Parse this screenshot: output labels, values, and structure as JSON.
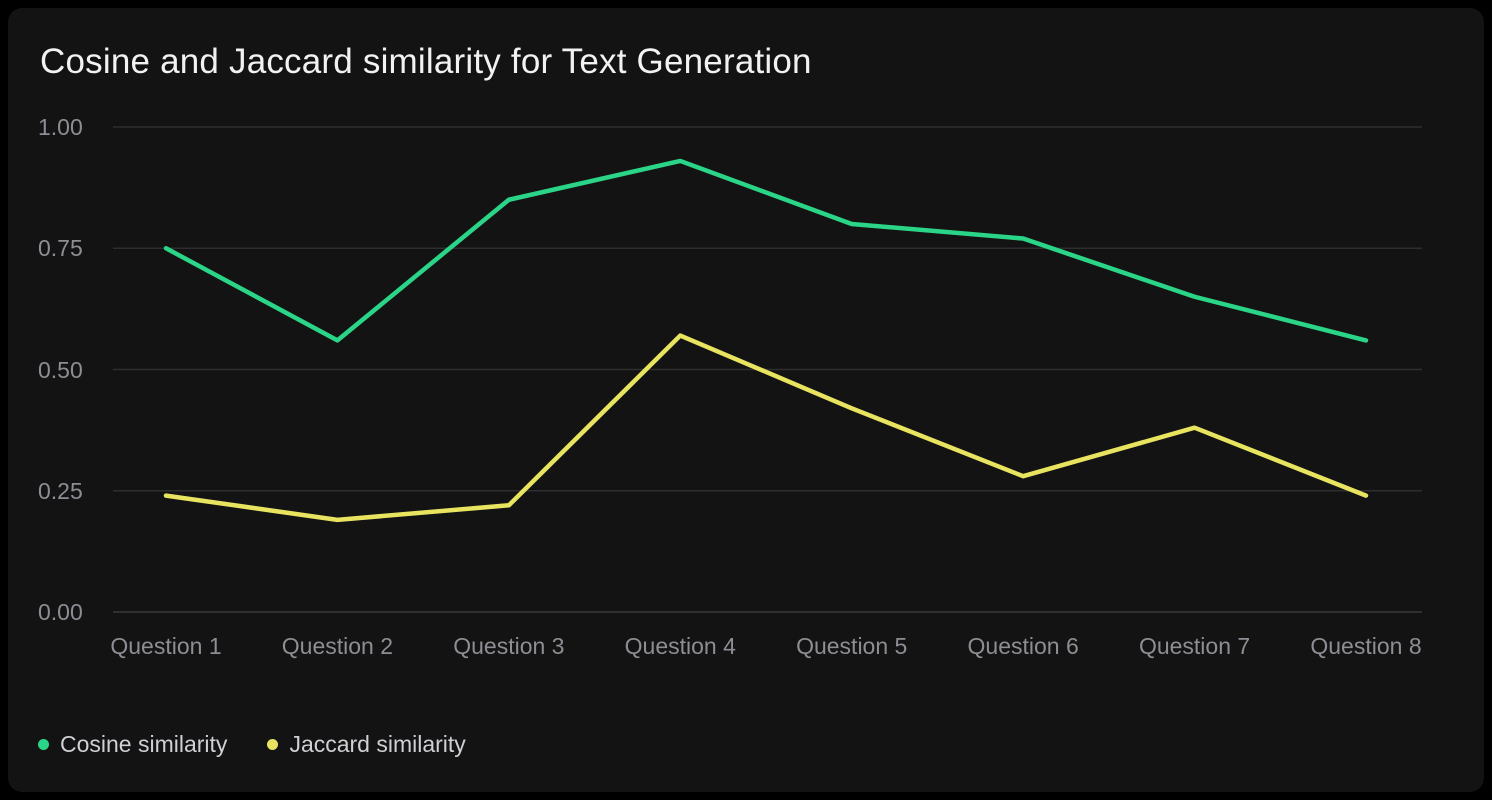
{
  "title": "Cosine and Jaccard similarity for Text Generation",
  "panel": {
    "background": "#131314",
    "page_background": "#000000"
  },
  "chart_data": {
    "type": "line",
    "title": "Cosine and Jaccard similarity for Text Generation",
    "categories": [
      "Question 1",
      "Question 2",
      "Question 3",
      "Question 4",
      "Question 5",
      "Question 6",
      "Question 7",
      "Question 8"
    ],
    "series": [
      {
        "name": "Cosine similarity",
        "color": "#2bd587",
        "values": [
          0.75,
          0.56,
          0.85,
          0.93,
          0.8,
          0.77,
          0.65,
          0.56
        ]
      },
      {
        "name": "Jaccard similarity",
        "color": "#e8e45f",
        "values": [
          0.24,
          0.19,
          0.22,
          0.57,
          0.42,
          0.28,
          0.38,
          0.24
        ]
      }
    ],
    "xlabel": "",
    "ylabel": "",
    "ylim": [
      0,
      1
    ],
    "y_tick_labels": [
      "0.00",
      "0.25",
      "0.50",
      "0.75",
      "1.00"
    ],
    "y_tick_values": [
      0,
      0.25,
      0.5,
      0.75,
      1.0
    ],
    "grid": "horizontal",
    "legend_position": "bottom-left",
    "colors": {
      "grid_line": "#2e2e2f",
      "baseline": "#3a3a3c",
      "tick_text": "#8d8d94",
      "legend_text": "#cfcfd4",
      "title_text": "#f2f2f3"
    }
  },
  "legend": {
    "items": [
      {
        "label": "Cosine similarity",
        "color": "#2bd587"
      },
      {
        "label": "Jaccard similarity",
        "color": "#e8e45f"
      }
    ]
  }
}
